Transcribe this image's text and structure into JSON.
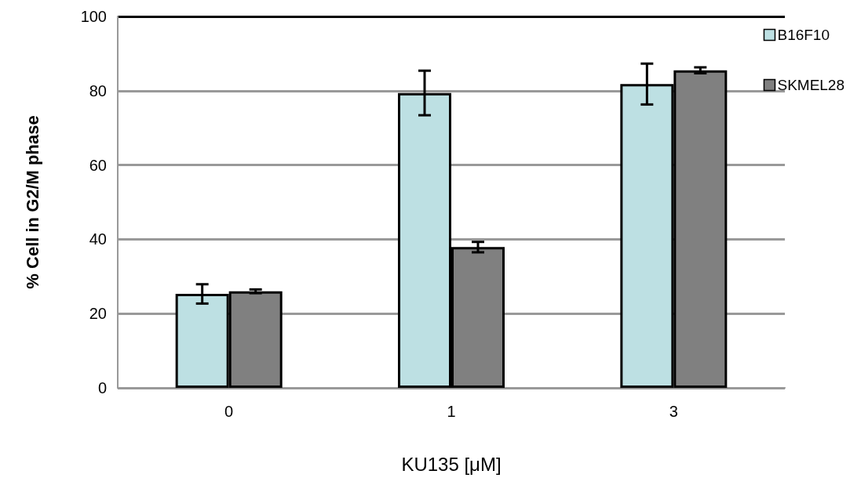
{
  "chart_data": {
    "type": "bar",
    "xlabel": "KU135 [μM]",
    "ylabel": "% Cell in G2/M phase",
    "categories": [
      "0",
      "1",
      "3"
    ],
    "series": [
      {
        "name": "B16F10",
        "color": "#bde0e3",
        "values": [
          25.3,
          79.4,
          81.8
        ],
        "errors": [
          2.6,
          6,
          5.5
        ]
      },
      {
        "name": "SKMEL28",
        "color": "#808080",
        "values": [
          26,
          37.9,
          85.5
        ],
        "errors": [
          0.5,
          1.4,
          0.8
        ]
      }
    ],
    "ylim": [
      0,
      100
    ],
    "yticks": [
      0,
      20,
      40,
      60,
      80,
      100
    ],
    "grid": "y",
    "legend": "top right"
  }
}
